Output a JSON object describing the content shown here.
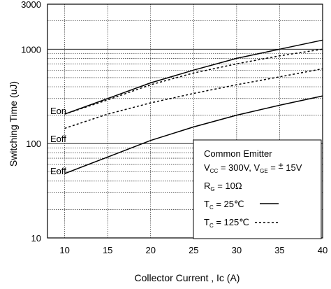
{
  "chart_data": {
    "type": "line",
    "xlabel": "Collector Current , Ic (A)",
    "ylabel": "Switching Time (uJ)",
    "xlim": [
      8,
      40
    ],
    "ylim": [
      10,
      3000
    ],
    "y_scale": "log",
    "grid": true,
    "x_ticks": [
      "10",
      "15",
      "20",
      "25",
      "30",
      "35",
      "40"
    ],
    "y_ticks": [
      "10",
      "100",
      "1000",
      "3000"
    ],
    "series": [
      {
        "name": "Eon",
        "condition": "25",
        "style": "solid",
        "x": [
          10,
          15,
          20,
          25,
          30,
          35,
          40
        ],
        "y": [
          205,
          300,
          440,
          600,
          800,
          1000,
          1250
        ]
      },
      {
        "name": "Eon",
        "condition": "125",
        "style": "dashed",
        "x": [
          10,
          15,
          20,
          25,
          30,
          35,
          40
        ],
        "y": [
          205,
          290,
          420,
          560,
          700,
          850,
          1000
        ]
      },
      {
        "name": "Eoff",
        "condition": "125",
        "style": "dashed",
        "x": [
          10,
          15,
          20,
          25,
          30,
          35,
          40
        ],
        "y": [
          145,
          205,
          270,
          340,
          420,
          510,
          620
        ]
      },
      {
        "name": "Eoff",
        "condition": "25",
        "style": "solid",
        "x": [
          10,
          15,
          20,
          25,
          30,
          35,
          40
        ],
        "y": [
          48,
          72,
          108,
          150,
          200,
          255,
          320
        ]
      }
    ],
    "curve_labels": [
      "Eon",
      "Eoff",
      "Eoff"
    ],
    "legend": {
      "placement": "bottom-right",
      "title": "Common Emitter",
      "line1_vcc_sym": "V",
      "line1_vcc_sub": "CC",
      "line1_vcc_val": " = 300V, ",
      "line1_vge_sym": "V",
      "line1_vge_sub": "GE",
      "line1_vge_val": " = ",
      "line1_pm": "±",
      "line1_15v": "  15V",
      "line2_rg_sym": "R",
      "line2_rg_sub": "G",
      "line2_rg_val": " = 10Ω",
      "line3_tc_sym": "T",
      "line3_tc_sub": "C",
      "line3_tc_val": " =   25℃",
      "line4_tc_sym": "T",
      "line4_tc_sub": "C",
      "line4_tc_val": " = 125℃"
    }
  }
}
